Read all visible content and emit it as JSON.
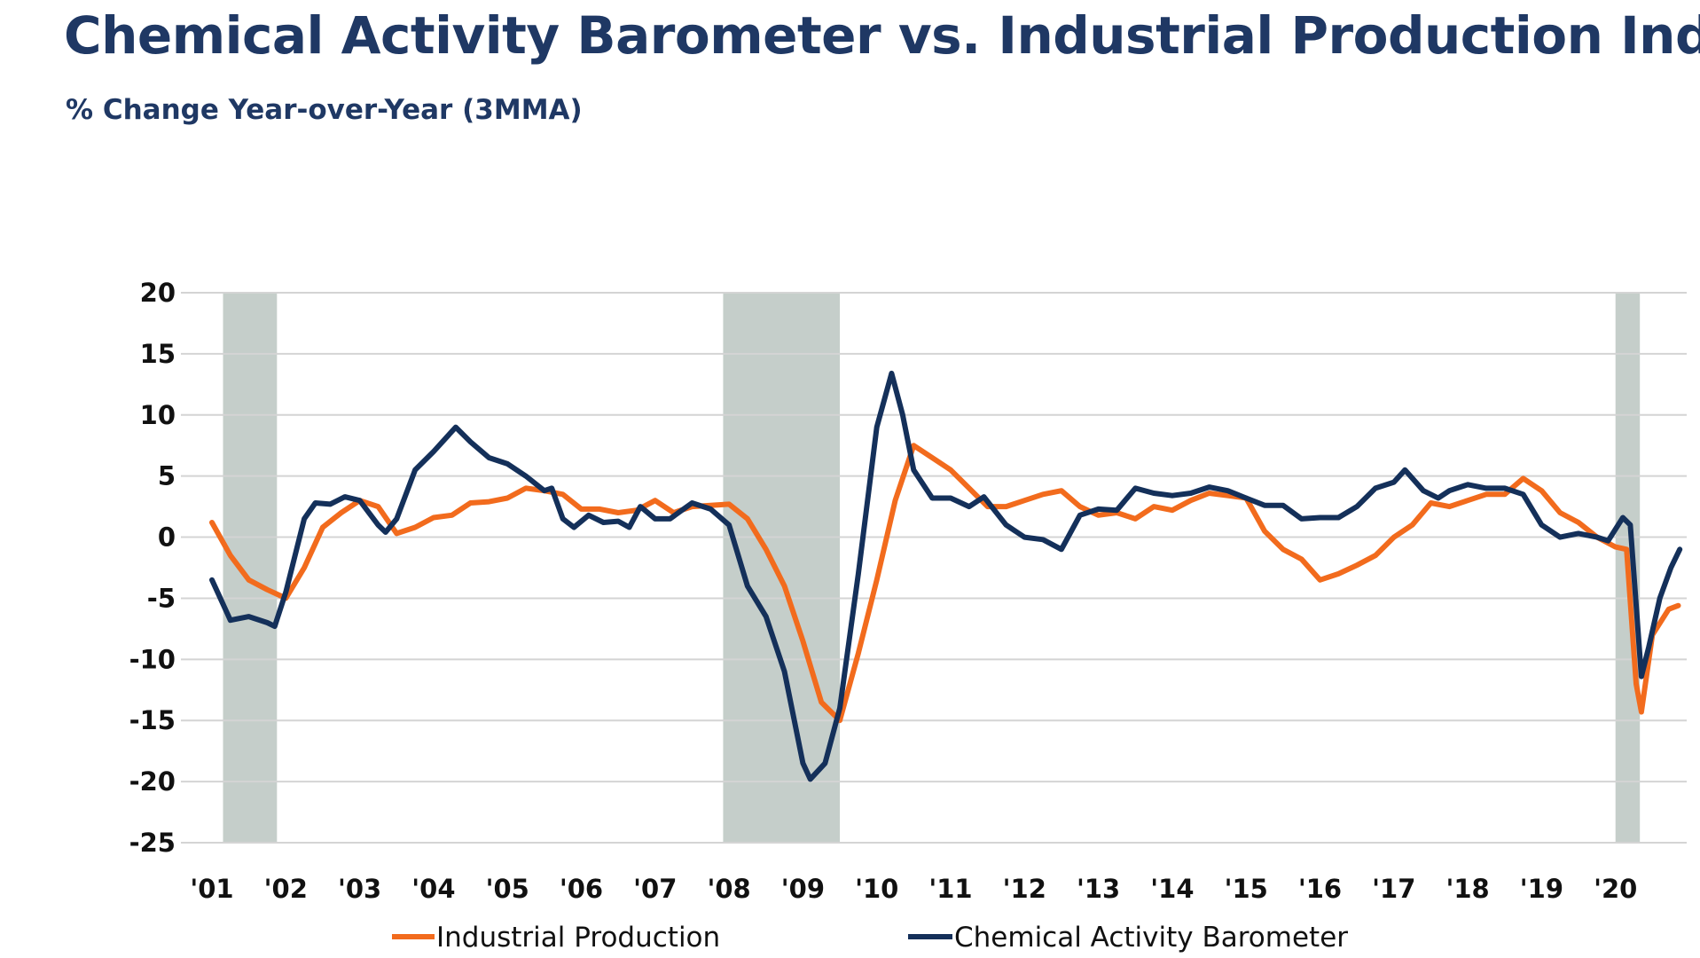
{
  "title": "Chemical Activity Barometer vs. Industrial Production Index",
  "subtitle": "% Change Year-over-Year (3MMA)",
  "chart_data": {
    "type": "line",
    "title": "Chemical Activity Barometer vs. Industrial Production Index",
    "subtitle": "% Change Year-over-Year (3MMA)",
    "ylim": [
      -25,
      20
    ],
    "yticks": [
      20,
      15,
      10,
      5,
      0,
      -5,
      -10,
      -15,
      -20,
      -25
    ],
    "xticks": [
      "'01",
      "'02",
      "'03",
      "'04",
      "'05",
      "'06",
      "'07",
      "'08",
      "'09",
      "'10",
      "'11",
      "'12",
      "'13",
      "'14",
      "'15",
      "'16",
      "'17",
      "'18",
      "'19",
      "'20"
    ],
    "xlim": [
      2001,
      2020.9
    ],
    "grid": "horizontal",
    "legend": "bottom",
    "recessions": [
      [
        2001.15,
        2001.88
      ],
      [
        2007.92,
        2009.5
      ],
      [
        2020.0,
        2020.33
      ]
    ],
    "recession_color": "#c5ceca",
    "series": [
      {
        "name": "Industrial Production",
        "color": "#f26b1d",
        "points": [
          [
            2001.0,
            1.2
          ],
          [
            2001.25,
            -1.5
          ],
          [
            2001.5,
            -3.5
          ],
          [
            2001.75,
            -4.3
          ],
          [
            2002.0,
            -5.0
          ],
          [
            2002.25,
            -2.5
          ],
          [
            2002.5,
            0.8
          ],
          [
            2002.75,
            2.0
          ],
          [
            2003.0,
            3.0
          ],
          [
            2003.25,
            2.5
          ],
          [
            2003.5,
            0.3
          ],
          [
            2003.75,
            0.8
          ],
          [
            2004.0,
            1.6
          ],
          [
            2004.25,
            1.8
          ],
          [
            2004.5,
            2.8
          ],
          [
            2004.75,
            2.9
          ],
          [
            2005.0,
            3.2
          ],
          [
            2005.25,
            4.0
          ],
          [
            2005.5,
            3.8
          ],
          [
            2005.75,
            3.5
          ],
          [
            2006.0,
            2.3
          ],
          [
            2006.25,
            2.3
          ],
          [
            2006.5,
            2.0
          ],
          [
            2006.75,
            2.2
          ],
          [
            2007.0,
            3.0
          ],
          [
            2007.25,
            2.0
          ],
          [
            2007.5,
            2.5
          ],
          [
            2007.75,
            2.6
          ],
          [
            2008.0,
            2.7
          ],
          [
            2008.25,
            1.5
          ],
          [
            2008.5,
            -1.0
          ],
          [
            2008.75,
            -4.0
          ],
          [
            2009.0,
            -8.5
          ],
          [
            2009.25,
            -13.5
          ],
          [
            2009.5,
            -15.0
          ],
          [
            2009.75,
            -9.5
          ],
          [
            2010.0,
            -3.5
          ],
          [
            2010.25,
            3.0
          ],
          [
            2010.5,
            7.5
          ],
          [
            2010.75,
            6.5
          ],
          [
            2011.0,
            5.5
          ],
          [
            2011.25,
            4.0
          ],
          [
            2011.5,
            2.5
          ],
          [
            2011.75,
            2.5
          ],
          [
            2012.0,
            3.0
          ],
          [
            2012.25,
            3.5
          ],
          [
            2012.5,
            3.8
          ],
          [
            2012.75,
            2.5
          ],
          [
            2013.0,
            1.8
          ],
          [
            2013.25,
            2.0
          ],
          [
            2013.5,
            1.5
          ],
          [
            2013.75,
            2.5
          ],
          [
            2014.0,
            2.2
          ],
          [
            2014.25,
            3.0
          ],
          [
            2014.5,
            3.6
          ],
          [
            2014.75,
            3.4
          ],
          [
            2015.0,
            3.2
          ],
          [
            2015.25,
            0.5
          ],
          [
            2015.5,
            -1.0
          ],
          [
            2015.75,
            -1.8
          ],
          [
            2016.0,
            -3.5
          ],
          [
            2016.25,
            -3.0
          ],
          [
            2016.5,
            -2.3
          ],
          [
            2016.75,
            -1.5
          ],
          [
            2017.0,
            0.0
          ],
          [
            2017.25,
            1.0
          ],
          [
            2017.5,
            2.8
          ],
          [
            2017.75,
            2.5
          ],
          [
            2018.0,
            3.0
          ],
          [
            2018.25,
            3.5
          ],
          [
            2018.5,
            3.5
          ],
          [
            2018.75,
            4.8
          ],
          [
            2019.0,
            3.8
          ],
          [
            2019.25,
            2.0
          ],
          [
            2019.5,
            1.2
          ],
          [
            2019.75,
            0.0
          ],
          [
            2020.0,
            -0.8
          ],
          [
            2020.15,
            -1.0
          ],
          [
            2020.28,
            -12.0
          ],
          [
            2020.35,
            -14.3
          ],
          [
            2020.5,
            -8.0
          ],
          [
            2020.72,
            -5.9
          ],
          [
            2020.85,
            -5.6
          ]
        ]
      },
      {
        "name": "Chemical Activity Barometer",
        "color": "#14305a",
        "points": [
          [
            2001.0,
            -3.5
          ],
          [
            2001.25,
            -6.8
          ],
          [
            2001.5,
            -6.5
          ],
          [
            2001.75,
            -7.0
          ],
          [
            2001.85,
            -7.3
          ],
          [
            2002.0,
            -4.5
          ],
          [
            2002.25,
            1.5
          ],
          [
            2002.4,
            2.8
          ],
          [
            2002.6,
            2.7
          ],
          [
            2002.8,
            3.3
          ],
          [
            2003.0,
            3.0
          ],
          [
            2003.25,
            1.0
          ],
          [
            2003.35,
            0.4
          ],
          [
            2003.5,
            1.5
          ],
          [
            2003.75,
            5.5
          ],
          [
            2004.0,
            7.0
          ],
          [
            2004.3,
            9.0
          ],
          [
            2004.5,
            7.8
          ],
          [
            2004.75,
            6.5
          ],
          [
            2005.0,
            6.0
          ],
          [
            2005.25,
            5.0
          ],
          [
            2005.5,
            3.8
          ],
          [
            2005.6,
            4.0
          ],
          [
            2005.75,
            1.5
          ],
          [
            2005.9,
            0.8
          ],
          [
            2006.1,
            1.8
          ],
          [
            2006.3,
            1.2
          ],
          [
            2006.5,
            1.3
          ],
          [
            2006.65,
            0.8
          ],
          [
            2006.8,
            2.5
          ],
          [
            2007.0,
            1.5
          ],
          [
            2007.2,
            1.5
          ],
          [
            2007.5,
            2.8
          ],
          [
            2007.75,
            2.3
          ],
          [
            2008.0,
            1.0
          ],
          [
            2008.25,
            -4.0
          ],
          [
            2008.5,
            -6.5
          ],
          [
            2008.75,
            -11.0
          ],
          [
            2009.0,
            -18.5
          ],
          [
            2009.1,
            -19.8
          ],
          [
            2009.3,
            -18.5
          ],
          [
            2009.5,
            -14.0
          ],
          [
            2009.75,
            -3.0
          ],
          [
            2010.0,
            9.0
          ],
          [
            2010.2,
            13.4
          ],
          [
            2010.35,
            10.0
          ],
          [
            2010.5,
            5.5
          ],
          [
            2010.75,
            3.2
          ],
          [
            2011.0,
            3.2
          ],
          [
            2011.25,
            2.5
          ],
          [
            2011.45,
            3.3
          ],
          [
            2011.75,
            1.0
          ],
          [
            2012.0,
            0.0
          ],
          [
            2012.25,
            -0.2
          ],
          [
            2012.5,
            -1.0
          ],
          [
            2012.75,
            1.8
          ],
          [
            2013.0,
            2.3
          ],
          [
            2013.25,
            2.2
          ],
          [
            2013.5,
            4.0
          ],
          [
            2013.75,
            3.6
          ],
          [
            2014.0,
            3.4
          ],
          [
            2014.25,
            3.6
          ],
          [
            2014.5,
            4.1
          ],
          [
            2014.75,
            3.8
          ],
          [
            2015.0,
            3.2
          ],
          [
            2015.25,
            2.6
          ],
          [
            2015.5,
            2.6
          ],
          [
            2015.75,
            1.5
          ],
          [
            2016.0,
            1.6
          ],
          [
            2016.25,
            1.6
          ],
          [
            2016.5,
            2.5
          ],
          [
            2016.75,
            4.0
          ],
          [
            2017.0,
            4.5
          ],
          [
            2017.15,
            5.5
          ],
          [
            2017.4,
            3.8
          ],
          [
            2017.6,
            3.2
          ],
          [
            2017.75,
            3.8
          ],
          [
            2018.0,
            4.3
          ],
          [
            2018.25,
            4.0
          ],
          [
            2018.5,
            4.0
          ],
          [
            2018.75,
            3.5
          ],
          [
            2019.0,
            1.0
          ],
          [
            2019.25,
            0.0
          ],
          [
            2019.5,
            0.3
          ],
          [
            2019.75,
            0.0
          ],
          [
            2019.9,
            -0.3
          ],
          [
            2020.1,
            1.6
          ],
          [
            2020.2,
            1.0
          ],
          [
            2020.35,
            -11.4
          ],
          [
            2020.45,
            -9.0
          ],
          [
            2020.6,
            -5.0
          ],
          [
            2020.75,
            -2.5
          ],
          [
            2020.87,
            -1.0
          ]
        ]
      }
    ]
  }
}
